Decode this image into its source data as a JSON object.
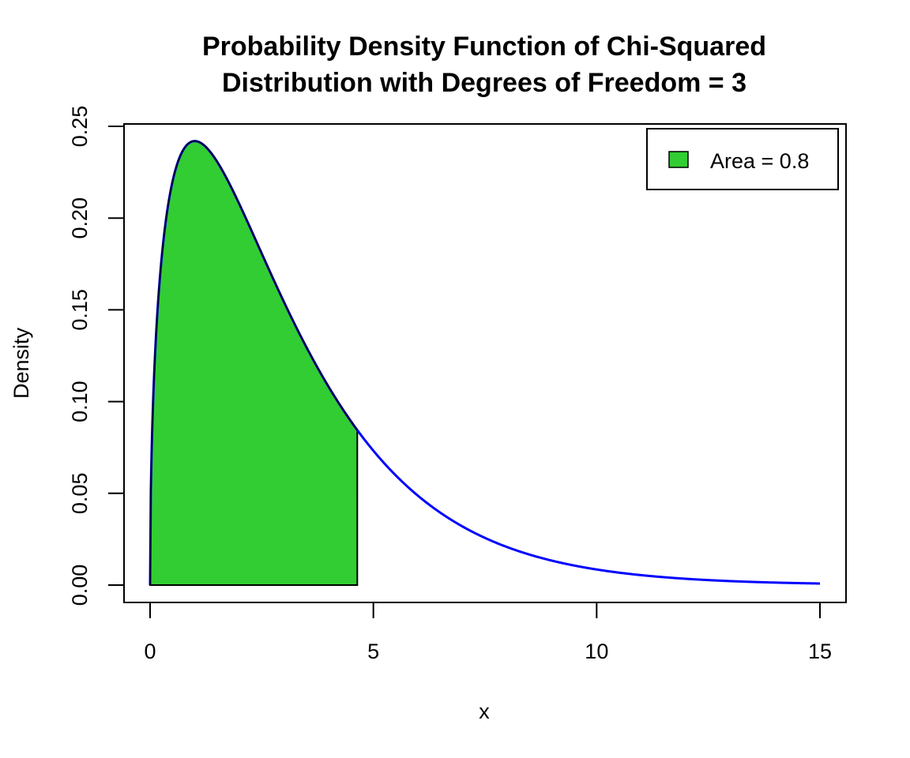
{
  "chart_data": {
    "type": "area",
    "title_line1": "Probability Density Function of Chi-Squared",
    "title_line2": "Distribution with Degrees of Freedom = 3",
    "xlabel": "x",
    "ylabel": "Density",
    "xlim": [
      0,
      15
    ],
    "ylim": [
      0,
      0.25
    ],
    "x_ticks": [
      0,
      5,
      10,
      15
    ],
    "y_ticks": [
      0.0,
      0.05,
      0.1,
      0.15,
      0.2,
      0.25
    ],
    "x_tick_labels": [
      "0",
      "5",
      "10",
      "15"
    ],
    "y_tick_labels": [
      "0.00",
      "0.05",
      "0.10",
      "0.15",
      "0.20",
      "0.25"
    ],
    "distribution": {
      "name": "chi-squared",
      "df": 3
    },
    "shaded_region": {
      "from": 0,
      "to": 4.64,
      "area": 0.8
    },
    "curve_color": "#0000ff",
    "fill_color": "#32cd32",
    "legend": {
      "label": "Area = 0.8",
      "position": "top-right",
      "swatch_color": "#32cd32"
    }
  }
}
